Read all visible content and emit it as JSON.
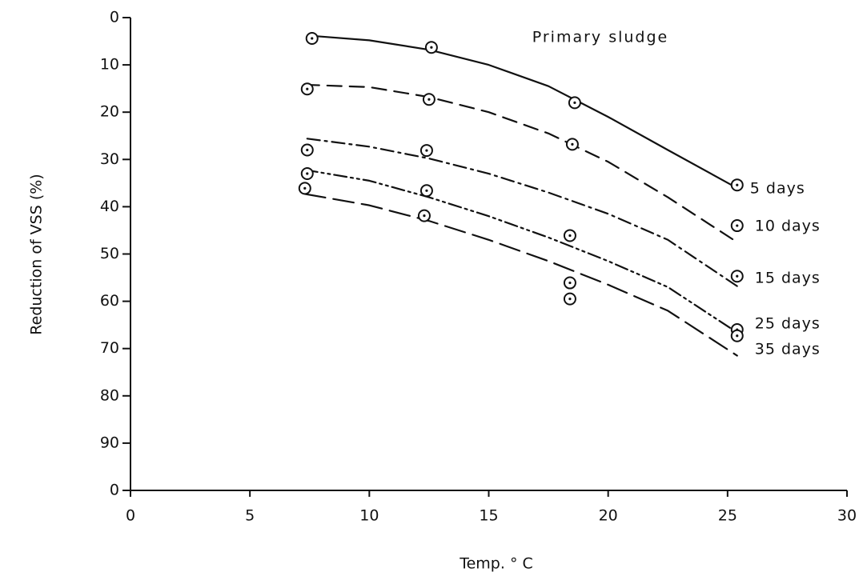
{
  "chart_data": {
    "type": "scatter",
    "annotation": "Primary sludge",
    "xlabel": "Temp. ° C",
    "ylabel": "Reduction of VSS (%)",
    "xlim": [
      0,
      30
    ],
    "ylim": [
      0,
      100
    ],
    "y_inverted": true,
    "xticks": [
      0,
      5,
      10,
      15,
      20,
      25,
      30
    ],
    "yticks": [
      0,
      10,
      20,
      30,
      40,
      50,
      60,
      70,
      80,
      90,
      {
        "value": 100,
        "label": "0"
      }
    ],
    "color": "#111111",
    "series": [
      {
        "name": "5 days",
        "dash": "none",
        "x": [
          7.6,
          12.6,
          18.6,
          25.4
        ],
        "values": [
          4.4,
          6.3,
          18,
          35.4
        ],
        "curve_x": [
          7.7,
          10,
          12.5,
          15,
          17.5,
          20,
          22.5,
          25.2
        ],
        "curve_values": [
          3.9,
          4.8,
          6.8,
          10,
          14.5,
          21,
          28,
          35.5
        ]
      },
      {
        "name": "10 days",
        "dash": "18 10",
        "x": [
          7.4,
          12.5,
          18.5,
          25.4
        ],
        "values": [
          15.1,
          17.3,
          26.8,
          44
        ],
        "curve_x": [
          7.3,
          10,
          12.5,
          15,
          17.5,
          20,
          22.5,
          25.4
        ],
        "curve_values": [
          14.2,
          14.7,
          16.8,
          20,
          24.5,
          30.5,
          38,
          47.5
        ]
      },
      {
        "name": "15 days",
        "dash": "16 6 3 6",
        "x": [
          7.4,
          12.4,
          25.4
        ],
        "values": [
          28,
          28.1,
          54.7
        ],
        "curve_x": [
          7.4,
          10,
          12.5,
          15,
          17.5,
          20,
          22.5,
          25.4
        ],
        "curve_values": [
          25.6,
          27.3,
          29.8,
          33,
          37,
          41.5,
          47,
          56.8
        ]
      },
      {
        "name": "25 days",
        "dash": "16 5 3 5 3 5",
        "x": [
          7.4,
          12.4,
          18.4,
          25.4
        ],
        "values": [
          33,
          36.6,
          46.1,
          66
        ],
        "curve_x": [
          7.3,
          10,
          12.5,
          15,
          17.5,
          20,
          22.5,
          25.4
        ],
        "curve_values": [
          32.2,
          34.5,
          38,
          42,
          46.5,
          51.5,
          57,
          66.6
        ]
      },
      {
        "name": "35 days",
        "dash": "26 10",
        "x": [
          7.3,
          12.3,
          18.4,
          18.4,
          25.4
        ],
        "values": [
          36.1,
          41.9,
          56.1,
          59.5,
          67.3
        ],
        "curve_x": [
          7.3,
          10,
          12.5,
          15,
          17.5,
          20,
          22.5,
          25.4
        ],
        "curve_values": [
          37.3,
          39.7,
          43,
          47,
          51.5,
          56.5,
          62,
          71.5
        ]
      }
    ]
  }
}
